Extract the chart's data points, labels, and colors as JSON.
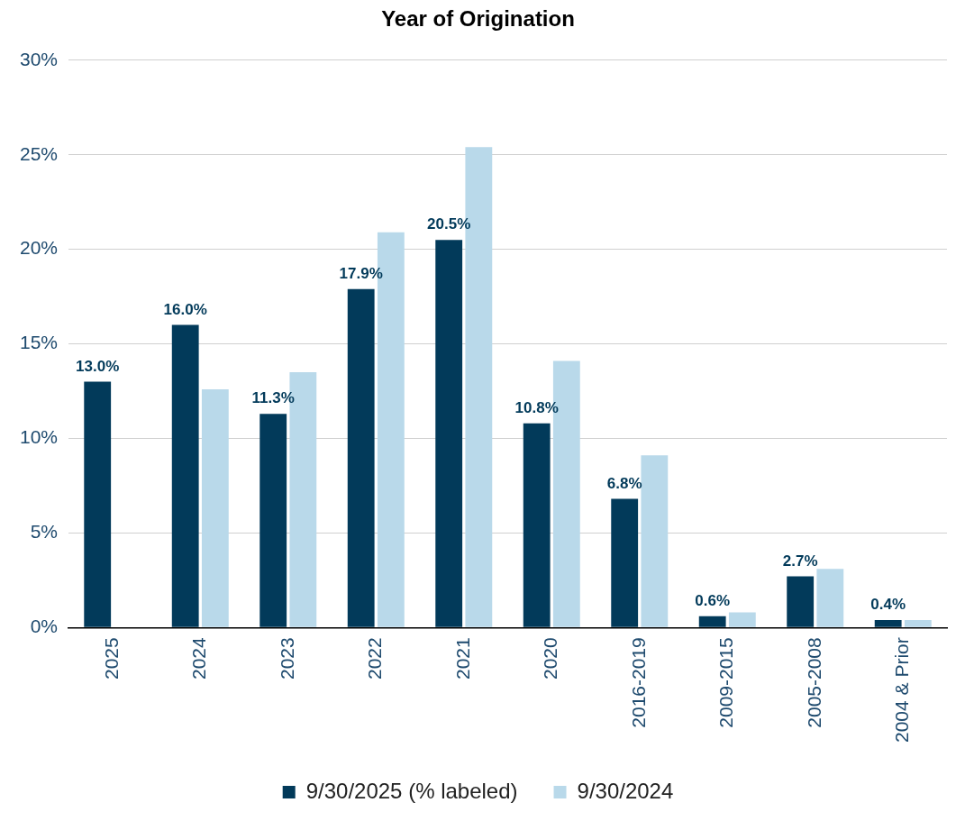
{
  "chart_data": {
    "type": "bar",
    "title": "Year of Origination",
    "categories": [
      "2025",
      "2024",
      "2023",
      "2022",
      "2021",
      "2020",
      "2016-2019",
      "2009-2015",
      "2005-2008",
      "2004 & Prior"
    ],
    "series": [
      {
        "name": "9/30/2025 (% labeled)",
        "color": "#023a5a",
        "values": [
          13.0,
          16.0,
          11.3,
          17.9,
          20.5,
          10.8,
          6.8,
          0.6,
          2.7,
          0.4
        ],
        "value_labels": [
          "13.0%",
          "16.0%",
          "11.3%",
          "17.9%",
          "20.5%",
          "10.8%",
          "6.8%",
          "0.6%",
          "2.7%",
          "0.4%"
        ]
      },
      {
        "name": "9/30/2024",
        "color": "#b9d9ea",
        "values": [
          null,
          12.6,
          13.5,
          20.9,
          25.4,
          14.1,
          9.1,
          0.8,
          3.1,
          0.4
        ]
      }
    ],
    "ylim": [
      0,
      30
    ],
    "yticks": [
      {
        "value": 0,
        "label": "0%"
      },
      {
        "value": 5,
        "label": "5%"
      },
      {
        "value": 10,
        "label": "10%"
      },
      {
        "value": 15,
        "label": "15%"
      },
      {
        "value": 20,
        "label": "20%"
      },
      {
        "value": 25,
        "label": "25%"
      },
      {
        "value": 30,
        "label": "30%"
      }
    ],
    "grid": "y",
    "legend": "bottom"
  }
}
